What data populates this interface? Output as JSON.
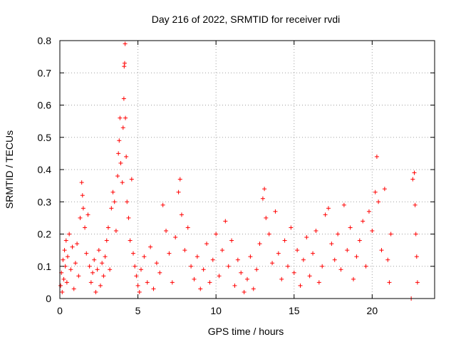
{
  "chart_data": {
    "type": "scatter",
    "title": "Day 216 of 2022, SRMTID for receiver rvdi",
    "xlabel": "GPS time / hours",
    "ylabel": "SRMTID / TECUs",
    "xlim": [
      0,
      24
    ],
    "ylim": [
      0,
      0.8
    ],
    "xticks": [
      "0",
      "5",
      "10",
      "15",
      "20"
    ],
    "yticks": [
      "0",
      "0.1",
      "0.2",
      "0.3",
      "0.4",
      "0.5",
      "0.6",
      "0.7",
      "0.8"
    ],
    "grid": true,
    "marker": "+",
    "color": "#ff0000",
    "series": [
      {
        "name": "SRMTID",
        "points": [
          [
            0.05,
            0.04
          ],
          [
            0.1,
            0.08
          ],
          [
            0.15,
            0.02
          ],
          [
            0.2,
            0.12
          ],
          [
            0.25,
            0.06
          ],
          [
            0.3,
            0.15
          ],
          [
            0.35,
            0.1
          ],
          [
            0.4,
            0.18
          ],
          [
            0.45,
            0.05
          ],
          [
            0.5,
            0.13
          ],
          [
            0.6,
            0.2
          ],
          [
            0.7,
            0.09
          ],
          [
            0.8,
            0.16
          ],
          [
            0.9,
            0.03
          ],
          [
            1.0,
            0.11
          ],
          [
            1.1,
            0.17
          ],
          [
            1.2,
            0.07
          ],
          [
            1.3,
            0.25
          ],
          [
            1.4,
            0.36
          ],
          [
            1.45,
            0.32
          ],
          [
            1.5,
            0.28
          ],
          [
            1.6,
            0.22
          ],
          [
            1.7,
            0.14
          ],
          [
            1.8,
            0.26
          ],
          [
            1.9,
            0.1
          ],
          [
            2.0,
            0.05
          ],
          [
            2.1,
            0.08
          ],
          [
            2.2,
            0.12
          ],
          [
            2.3,
            0.02
          ],
          [
            2.4,
            0.09
          ],
          [
            2.5,
            0.15
          ],
          [
            2.6,
            0.04
          ],
          [
            2.7,
            0.11
          ],
          [
            2.8,
            0.07
          ],
          [
            2.9,
            0.13
          ],
          [
            3.0,
            0.18
          ],
          [
            3.1,
            0.22
          ],
          [
            3.2,
            0.09
          ],
          [
            3.3,
            0.28
          ],
          [
            3.4,
            0.33
          ],
          [
            3.5,
            0.3
          ],
          [
            3.6,
            0.21
          ],
          [
            3.7,
            0.38
          ],
          [
            3.75,
            0.45
          ],
          [
            3.8,
            0.49
          ],
          [
            3.85,
            0.56
          ],
          [
            3.9,
            0.42
          ],
          [
            4.0,
            0.36
          ],
          [
            4.05,
            0.53
          ],
          [
            4.1,
            0.62
          ],
          [
            4.12,
            0.72
          ],
          [
            4.15,
            0.73
          ],
          [
            4.18,
            0.79
          ],
          [
            4.2,
            0.56
          ],
          [
            4.25,
            0.44
          ],
          [
            4.3,
            0.3
          ],
          [
            4.4,
            0.25
          ],
          [
            4.5,
            0.18
          ],
          [
            4.6,
            0.37
          ],
          [
            4.7,
            0.14
          ],
          [
            4.8,
            0.1
          ],
          [
            4.9,
            0.07
          ],
          [
            5.0,
            0.04
          ],
          [
            5.1,
            0.02
          ],
          [
            5.2,
            0.09
          ],
          [
            5.4,
            0.13
          ],
          [
            5.6,
            0.05
          ],
          [
            5.8,
            0.16
          ],
          [
            6.0,
            0.03
          ],
          [
            6.2,
            0.11
          ],
          [
            6.4,
            0.08
          ],
          [
            6.6,
            0.29
          ],
          [
            6.8,
            0.21
          ],
          [
            7.0,
            0.14
          ],
          [
            7.2,
            0.05
          ],
          [
            7.4,
            0.19
          ],
          [
            7.6,
            0.33
          ],
          [
            7.7,
            0.37
          ],
          [
            7.8,
            0.26
          ],
          [
            8.0,
            0.15
          ],
          [
            8.2,
            0.22
          ],
          [
            8.4,
            0.1
          ],
          [
            8.6,
            0.06
          ],
          [
            8.8,
            0.13
          ],
          [
            9.0,
            0.03
          ],
          [
            9.2,
            0.09
          ],
          [
            9.4,
            0.17
          ],
          [
            9.6,
            0.05
          ],
          [
            9.8,
            0.12
          ],
          [
            10.0,
            0.2
          ],
          [
            10.2,
            0.07
          ],
          [
            10.4,
            0.15
          ],
          [
            10.6,
            0.24
          ],
          [
            10.8,
            0.1
          ],
          [
            11.0,
            0.18
          ],
          [
            11.2,
            0.04
          ],
          [
            11.4,
            0.12
          ],
          [
            11.6,
            0.08
          ],
          [
            11.8,
            0.02
          ],
          [
            12.0,
            0.06
          ],
          [
            12.2,
            0.13
          ],
          [
            12.4,
            0.03
          ],
          [
            12.6,
            0.09
          ],
          [
            12.8,
            0.17
          ],
          [
            13.0,
            0.31
          ],
          [
            13.1,
            0.34
          ],
          [
            13.2,
            0.25
          ],
          [
            13.4,
            0.2
          ],
          [
            13.6,
            0.11
          ],
          [
            13.8,
            0.27
          ],
          [
            14.0,
            0.14
          ],
          [
            14.2,
            0.06
          ],
          [
            14.4,
            0.18
          ],
          [
            14.6,
            0.1
          ],
          [
            14.8,
            0.22
          ],
          [
            15.0,
            0.08
          ],
          [
            15.2,
            0.15
          ],
          [
            15.4,
            0.04
          ],
          [
            15.6,
            0.12
          ],
          [
            15.8,
            0.19
          ],
          [
            16.0,
            0.07
          ],
          [
            16.2,
            0.14
          ],
          [
            16.4,
            0.21
          ],
          [
            16.6,
            0.05
          ],
          [
            16.8,
            0.1
          ],
          [
            17.0,
            0.26
          ],
          [
            17.2,
            0.28
          ],
          [
            17.4,
            0.17
          ],
          [
            17.6,
            0.12
          ],
          [
            17.8,
            0.2
          ],
          [
            18.0,
            0.09
          ],
          [
            18.2,
            0.29
          ],
          [
            18.4,
            0.15
          ],
          [
            18.6,
            0.22
          ],
          [
            18.8,
            0.06
          ],
          [
            19.0,
            0.13
          ],
          [
            19.2,
            0.18
          ],
          [
            19.4,
            0.24
          ],
          [
            19.6,
            0.1
          ],
          [
            19.8,
            0.27
          ],
          [
            20.0,
            0.21
          ],
          [
            20.2,
            0.33
          ],
          [
            20.3,
            0.44
          ],
          [
            20.4,
            0.3
          ],
          [
            20.6,
            0.15
          ],
          [
            20.8,
            0.34
          ],
          [
            21.0,
            0.12
          ],
          [
            21.1,
            0.05
          ],
          [
            21.2,
            0.2
          ],
          [
            22.5,
            0.0
          ],
          [
            22.6,
            0.37
          ],
          [
            22.7,
            0.39
          ],
          [
            22.75,
            0.29
          ],
          [
            22.8,
            0.2
          ],
          [
            22.85,
            0.13
          ],
          [
            22.9,
            0.05
          ]
        ]
      }
    ]
  }
}
